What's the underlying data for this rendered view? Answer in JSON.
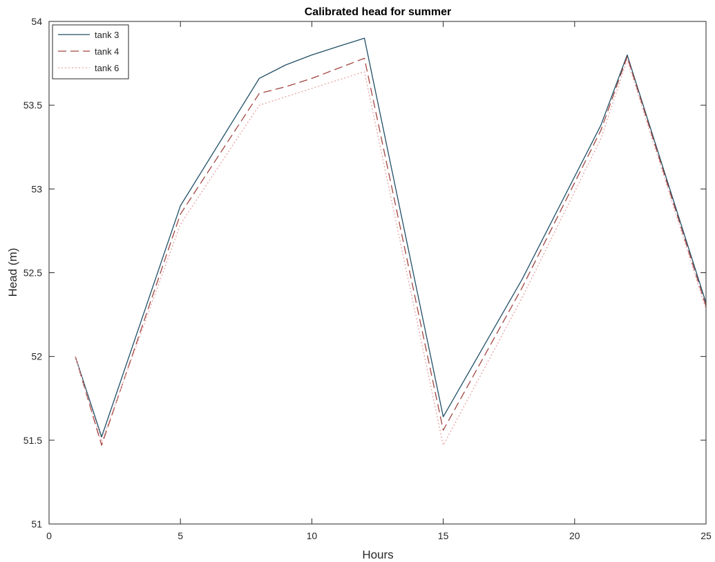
{
  "chart_data": {
    "type": "line",
    "title": "Calibrated head for summer",
    "xlabel": "Hours",
    "ylabel": "Head (m)",
    "xlim": [
      0,
      25
    ],
    "ylim": [
      51,
      54
    ],
    "xticks": [
      0,
      5,
      10,
      15,
      20,
      25
    ],
    "yticks": [
      51,
      51.5,
      52,
      52.5,
      53,
      53.5,
      54
    ],
    "grid": false,
    "legend_position": "top-left",
    "series": [
      {
        "name": "tank 3",
        "style": "solid",
        "color": "#1f4e66",
        "x": [
          1,
          2,
          5,
          8,
          9,
          10,
          11,
          12,
          15,
          18,
          21,
          22,
          25
        ],
        "y": [
          52.0,
          51.52,
          52.9,
          53.66,
          53.74,
          53.8,
          53.85,
          53.9,
          51.64,
          52.46,
          53.38,
          53.8,
          52.32
        ]
      },
      {
        "name": "tank 4",
        "style": "dashed",
        "color": "#a0443f",
        "x": [
          1,
          2,
          5,
          8,
          9,
          10,
          11,
          12,
          15,
          18,
          21,
          22,
          25
        ],
        "y": [
          52.0,
          51.47,
          52.85,
          53.57,
          53.61,
          53.66,
          53.72,
          53.78,
          51.56,
          52.41,
          53.35,
          53.79,
          52.3
        ]
      },
      {
        "name": "tank 6",
        "style": "dotted",
        "color": "#e8a0a0",
        "x": [
          1,
          2,
          5,
          8,
          9,
          10,
          11,
          12,
          15,
          18,
          21,
          22,
          25
        ],
        "y": [
          52.0,
          51.49,
          52.79,
          53.5,
          53.55,
          53.6,
          53.65,
          53.7,
          51.47,
          52.35,
          53.3,
          53.77,
          52.28
        ]
      }
    ]
  }
}
